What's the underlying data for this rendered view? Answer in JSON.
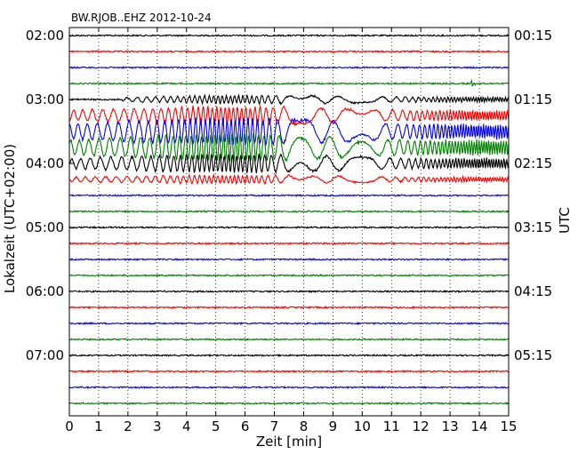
{
  "chart_data": {
    "type": "line",
    "header": "BW.RJOB..EHZ 2012-10-24",
    "xlabel": "Zeit  [min]",
    "ylabel_left": "Lokalzeit (UTC+02:00)",
    "ylabel_right": "UTC",
    "xlim": [
      0,
      15
    ],
    "x_ticks": [
      "0",
      "1",
      "2",
      "3",
      "4",
      "5",
      "6",
      "7",
      "8",
      "9",
      "10",
      "11",
      "12",
      "13",
      "14",
      "15"
    ],
    "y_ticks_left": [
      "02:00",
      "03:00",
      "04:00",
      "05:00",
      "06:00",
      "07:00"
    ],
    "y_ticks_right": [
      "00:15",
      "01:15",
      "02:15",
      "03:15",
      "04:15",
      "05:15"
    ],
    "trace_minutes": 15,
    "trace_count": 24,
    "trace_colors": [
      "#000000",
      "#ff0000",
      "#0000ff",
      "#008000"
    ],
    "grid": "vertical dotted",
    "events": [
      {
        "name": "local-event",
        "trace": 3,
        "start_min": 13.7,
        "end_min": 14.3,
        "amplitude": "small"
      },
      {
        "name": "teleseismic-onset",
        "trace": 4,
        "start_min": 1.8,
        "end_min": 15,
        "amplitude": "small"
      },
      {
        "name": "teleseismic-surface-waves",
        "trace": 5,
        "start_min": 0,
        "end_min": 15,
        "amplitude": "medium"
      },
      {
        "name": "teleseismic-surface-waves-peak",
        "trace": 6,
        "start_min": 0,
        "end_min": 15,
        "amplitude": "large"
      },
      {
        "name": "teleseismic-surface-waves-peak",
        "trace": 7,
        "start_min": 0,
        "end_min": 15,
        "amplitude": "large"
      },
      {
        "name": "teleseismic-coda",
        "trace": 8,
        "start_min": 0,
        "end_min": 15,
        "amplitude": "medium"
      },
      {
        "name": "teleseismic-coda",
        "trace": 9,
        "start_min": 0,
        "end_min": 15,
        "amplitude": "small"
      }
    ]
  }
}
